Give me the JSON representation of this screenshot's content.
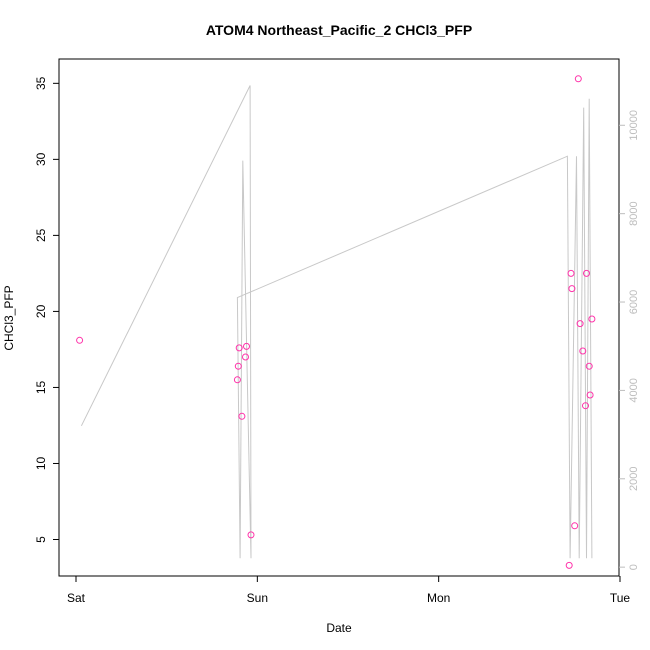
{
  "chart_data": {
    "type": "scatter",
    "title": "ATOM4 Northeast_Pacific_2 CHCl3_PFP",
    "xlabel": "Date",
    "ylabel": "CHCl3_PFP",
    "x_ticks": [
      "Sat",
      "Sun",
      "Mon",
      "Tue"
    ],
    "xlim_days": [
      0,
      3
    ],
    "ylim": [
      2.6,
      36.6
    ],
    "y_ticks": [
      5,
      10,
      15,
      20,
      25,
      30,
      35
    ],
    "y2lim": [
      -200,
      11500
    ],
    "y2_ticks": [
      0,
      2000,
      4000,
      6000,
      8000,
      10000
    ],
    "grid": false,
    "colors": {
      "points": "#ff33aa",
      "line": "#c8c8c8",
      "right_axis": "#bdbdbd"
    },
    "series": [
      {
        "axis": "left",
        "style": "points",
        "points": [
          {
            "x": 0.02,
            "y": 18.1
          },
          {
            "x": 0.89,
            "y": 15.5
          },
          {
            "x": 0.895,
            "y": 16.4
          },
          {
            "x": 0.9,
            "y": 17.6
          },
          {
            "x": 0.915,
            "y": 13.1
          },
          {
            "x": 0.935,
            "y": 17.0
          },
          {
            "x": 0.94,
            "y": 17.7
          },
          {
            "x": 0.965,
            "y": 5.3
          },
          {
            "x": 2.72,
            "y": 3.3
          },
          {
            "x": 2.73,
            "y": 22.5
          },
          {
            "x": 2.735,
            "y": 21.5
          },
          {
            "x": 2.75,
            "y": 5.9
          },
          {
            "x": 2.77,
            "y": 35.3
          },
          {
            "x": 2.78,
            "y": 19.2
          },
          {
            "x": 2.795,
            "y": 17.4
          },
          {
            "x": 2.81,
            "y": 13.8
          },
          {
            "x": 2.815,
            "y": 22.5
          },
          {
            "x": 2.83,
            "y": 16.4
          },
          {
            "x": 2.835,
            "y": 14.5
          },
          {
            "x": 2.845,
            "y": 19.5
          }
        ]
      },
      {
        "axis": "right",
        "style": "line",
        "points": [
          {
            "x": 0.03,
            "y": 3200
          },
          {
            "x": 0.96,
            "y": 10900
          },
          {
            "x": 0.965,
            "y": 200
          },
          {
            "x": 0.92,
            "y": 9200
          },
          {
            "x": 0.905,
            "y": 200
          },
          {
            "x": 0.89,
            "y": 6100
          },
          {
            "x": 2.71,
            "y": 9300
          },
          {
            "x": 2.725,
            "y": 200
          },
          {
            "x": 2.76,
            "y": 9300
          },
          {
            "x": 2.775,
            "y": 200
          },
          {
            "x": 2.8,
            "y": 10400
          },
          {
            "x": 2.815,
            "y": 200
          },
          {
            "x": 2.83,
            "y": 10600
          },
          {
            "x": 2.845,
            "y": 200
          }
        ]
      }
    ]
  }
}
